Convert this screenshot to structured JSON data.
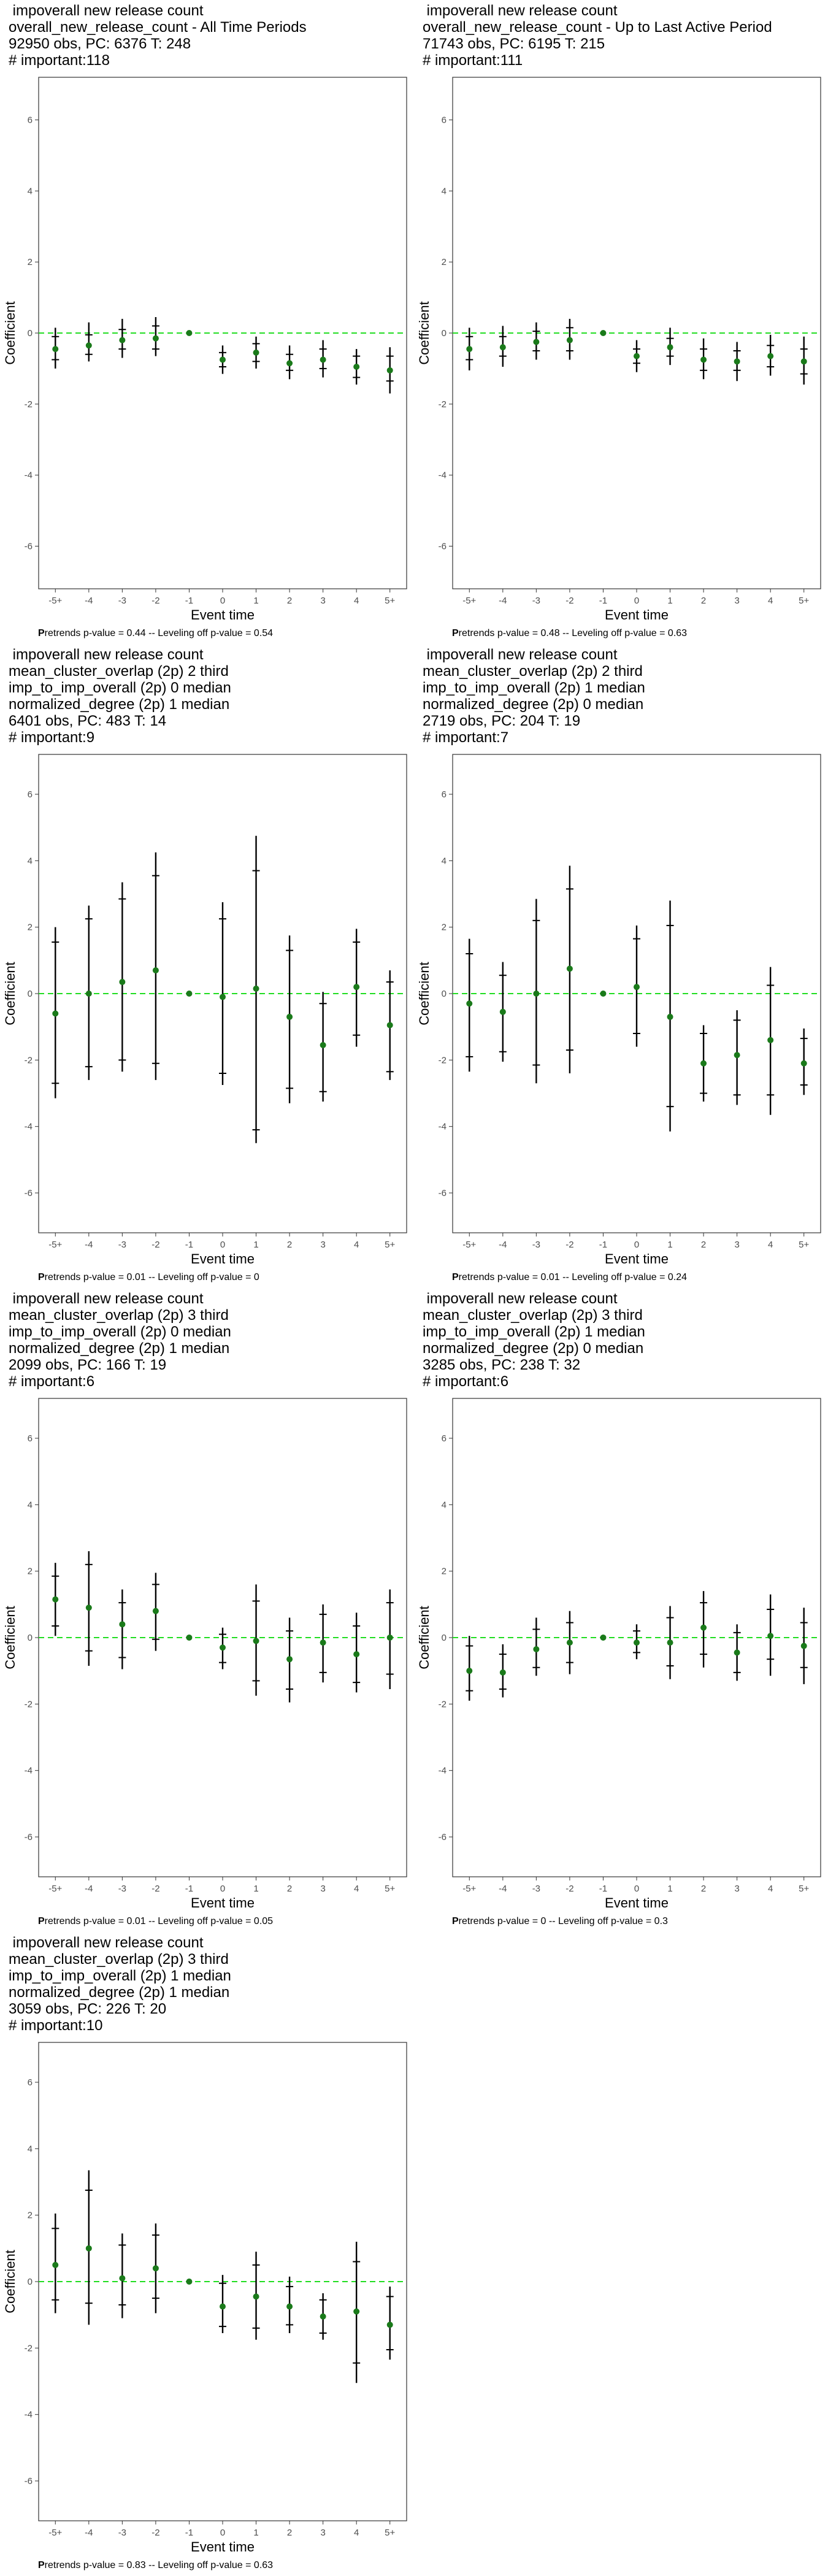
{
  "ui": {
    "y_axis_label": "Coefficient",
    "x_axis_label": "Event time",
    "caption_lead": "P",
    "caption_tail_template": "retrends p-value = {pre} -- Leveling off p-value = {lev}"
  },
  "colors": {
    "point": "#1a7a1a",
    "zero_line": "#22dd22",
    "error_bar": "#000000",
    "frame": "#333333",
    "tick_text": "#4d4d4d"
  },
  "chart_data": [
    {
      "type": "scatter",
      "title_lines": [
        " impoverall new release count",
        "overall_new_release_count - All Time Periods",
        "92950 obs, PC: 6376 T: 248",
        "# important:118"
      ],
      "x_categories": [
        "-5+",
        "-4",
        "-3",
        "-2",
        "-1",
        "0",
        "1",
        "2",
        "3",
        "4",
        "5+"
      ],
      "ylim": [
        -7.2,
        7.2
      ],
      "yticks": [
        -6,
        -4,
        -2,
        0,
        2,
        4,
        6
      ],
      "grid": false,
      "coef": [
        -0.45,
        -0.35,
        -0.2,
        -0.15,
        0.0,
        -0.75,
        -0.55,
        -0.85,
        -0.75,
        -0.95,
        -1.05
      ],
      "ci_inner": [
        [
          -0.75,
          -0.1
        ],
        [
          -0.6,
          -0.05
        ],
        [
          -0.45,
          0.1
        ],
        [
          -0.45,
          0.2
        ],
        [
          0,
          0
        ],
        [
          -0.95,
          -0.55
        ],
        [
          -0.8,
          -0.3
        ],
        [
          -1.05,
          -0.6
        ],
        [
          -1.0,
          -0.45
        ],
        [
          -1.25,
          -0.65
        ],
        [
          -1.35,
          -0.65
        ]
      ],
      "ci_outer": [
        [
          -1.0,
          0.15
        ],
        [
          -0.8,
          0.3
        ],
        [
          -0.7,
          0.4
        ],
        [
          -0.65,
          0.45
        ],
        [
          0,
          0
        ],
        [
          -1.15,
          -0.35
        ],
        [
          -1.0,
          -0.1
        ],
        [
          -1.3,
          -0.35
        ],
        [
          -1.25,
          -0.2
        ],
        [
          -1.45,
          -0.45
        ],
        [
          -1.7,
          -0.4
        ]
      ],
      "pretrends_p": "0.44",
      "leveling_off_p": "0.54"
    },
    {
      "type": "scatter",
      "title_lines": [
        " impoverall new release count",
        "overall_new_release_count - Up to Last Active Period",
        "71743 obs, PC: 6195 T: 215",
        "# important:111"
      ],
      "x_categories": [
        "-5+",
        "-4",
        "-3",
        "-2",
        "-1",
        "0",
        "1",
        "2",
        "3",
        "4",
        "5+"
      ],
      "ylim": [
        -7.2,
        7.2
      ],
      "yticks": [
        -6,
        -4,
        -2,
        0,
        2,
        4,
        6
      ],
      "grid": false,
      "coef": [
        -0.45,
        -0.4,
        -0.25,
        -0.2,
        0.0,
        -0.65,
        -0.4,
        -0.75,
        -0.8,
        -0.65,
        -0.8
      ],
      "ci_inner": [
        [
          -0.75,
          -0.1
        ],
        [
          -0.65,
          -0.1
        ],
        [
          -0.5,
          0.05
        ],
        [
          -0.5,
          0.15
        ],
        [
          0,
          0
        ],
        [
          -0.85,
          -0.45
        ],
        [
          -0.65,
          -0.15
        ],
        [
          -1.05,
          -0.45
        ],
        [
          -1.05,
          -0.5
        ],
        [
          -0.95,
          -0.35
        ],
        [
          -1.15,
          -0.45
        ]
      ],
      "ci_outer": [
        [
          -1.05,
          0.15
        ],
        [
          -0.95,
          0.2
        ],
        [
          -0.75,
          0.3
        ],
        [
          -0.75,
          0.4
        ],
        [
          0,
          0
        ],
        [
          -1.1,
          -0.2
        ],
        [
          -0.9,
          0.15
        ],
        [
          -1.3,
          -0.15
        ],
        [
          -1.35,
          -0.25
        ],
        [
          -1.2,
          -0.05
        ],
        [
          -1.45,
          -0.1
        ]
      ],
      "pretrends_p": "0.48",
      "leveling_off_p": "0.63"
    },
    {
      "type": "scatter",
      "title_lines": [
        " impoverall new release count",
        "mean_cluster_overlap (2p) 2 third",
        "imp_to_imp_overall (2p) 0 median",
        "normalized_degree (2p) 1 median",
        "6401 obs, PC: 483 T: 14",
        "# important:9"
      ],
      "x_categories": [
        "-5+",
        "-4",
        "-3",
        "-2",
        "-1",
        "0",
        "1",
        "2",
        "3",
        "4",
        "5+"
      ],
      "ylim": [
        -7.2,
        7.2
      ],
      "yticks": [
        -6,
        -4,
        -2,
        0,
        2,
        4,
        6
      ],
      "grid": false,
      "coef": [
        -0.6,
        0.0,
        0.35,
        0.7,
        0.0,
        -0.1,
        0.15,
        -0.7,
        -1.55,
        0.2,
        -0.95
      ],
      "ci_inner": [
        [
          -2.7,
          1.55
        ],
        [
          -2.2,
          2.25
        ],
        [
          -2.0,
          2.85
        ],
        [
          -2.1,
          3.55
        ],
        [
          0,
          0
        ],
        [
          -2.4,
          2.25
        ],
        [
          -4.1,
          3.7
        ],
        [
          -2.85,
          1.3
        ],
        [
          -2.95,
          -0.3
        ],
        [
          -1.25,
          1.55
        ],
        [
          -2.35,
          0.35
        ]
      ],
      "ci_outer": [
        [
          -3.15,
          2.0
        ],
        [
          -2.6,
          2.65
        ],
        [
          -2.35,
          3.35
        ],
        [
          -2.6,
          4.25
        ],
        [
          0,
          0
        ],
        [
          -2.75,
          2.75
        ],
        [
          -4.5,
          4.75
        ],
        [
          -3.3,
          1.75
        ],
        [
          -3.25,
          0.05
        ],
        [
          -1.6,
          1.95
        ],
        [
          -2.6,
          0.7
        ]
      ],
      "pretrends_p": "0.01",
      "leveling_off_p": "0"
    },
    {
      "type": "scatter",
      "title_lines": [
        " impoverall new release count",
        "mean_cluster_overlap (2p) 2 third",
        "imp_to_imp_overall (2p) 1 median",
        "normalized_degree (2p) 0 median",
        "2719 obs, PC: 204 T: 19",
        "# important:7"
      ],
      "x_categories": [
        "-5+",
        "-4",
        "-3",
        "-2",
        "-1",
        "0",
        "1",
        "2",
        "3",
        "4",
        "5+"
      ],
      "ylim": [
        -7.2,
        7.2
      ],
      "yticks": [
        -6,
        -4,
        -2,
        0,
        2,
        4,
        6
      ],
      "grid": false,
      "coef": [
        -0.3,
        -0.55,
        0.0,
        0.75,
        0.0,
        0.2,
        -0.7,
        -2.1,
        -1.85,
        -1.4,
        -2.1
      ],
      "ci_inner": [
        [
          -1.9,
          1.2
        ],
        [
          -1.75,
          0.55
        ],
        [
          -2.15,
          2.2
        ],
        [
          -1.7,
          3.15
        ],
        [
          0,
          0
        ],
        [
          -1.2,
          1.65
        ],
        [
          -3.4,
          2.05
        ],
        [
          -3.0,
          -1.2
        ],
        [
          -3.05,
          -0.8
        ],
        [
          -3.05,
          0.25
        ],
        [
          -2.75,
          -1.35
        ]
      ],
      "ci_outer": [
        [
          -2.35,
          1.65
        ],
        [
          -2.05,
          0.95
        ],
        [
          -2.7,
          2.85
        ],
        [
          -2.4,
          3.85
        ],
        [
          0,
          0
        ],
        [
          -1.6,
          2.05
        ],
        [
          -4.15,
          2.8
        ],
        [
          -3.25,
          -0.95
        ],
        [
          -3.35,
          -0.5
        ],
        [
          -3.65,
          0.8
        ],
        [
          -3.05,
          -1.05
        ]
      ],
      "pretrends_p": "0.01",
      "leveling_off_p": "0.24"
    },
    {
      "type": "scatter",
      "title_lines": [
        " impoverall new release count",
        "mean_cluster_overlap (2p) 3 third",
        "imp_to_imp_overall (2p) 0 median",
        "normalized_degree (2p) 1 median",
        "2099 obs, PC: 166 T: 19",
        "# important:6"
      ],
      "x_categories": [
        "-5+",
        "-4",
        "-3",
        "-2",
        "-1",
        "0",
        "1",
        "2",
        "3",
        "4",
        "5+"
      ],
      "ylim": [
        -7.2,
        7.2
      ],
      "yticks": [
        -6,
        -4,
        -2,
        0,
        2,
        4,
        6
      ],
      "grid": false,
      "coef": [
        1.15,
        0.9,
        0.4,
        0.8,
        0.0,
        -0.3,
        -0.1,
        -0.65,
        -0.15,
        -0.5,
        0.0
      ],
      "ci_inner": [
        [
          0.35,
          1.85
        ],
        [
          -0.4,
          2.2
        ],
        [
          -0.6,
          1.05
        ],
        [
          -0.05,
          1.6
        ],
        [
          0,
          0
        ],
        [
          -0.75,
          0.1
        ],
        [
          -1.3,
          1.1
        ],
        [
          -1.55,
          0.2
        ],
        [
          -1.05,
          0.7
        ],
        [
          -1.35,
          0.35
        ],
        [
          -1.1,
          1.05
        ]
      ],
      "ci_outer": [
        [
          0.05,
          2.25
        ],
        [
          -0.85,
          2.6
        ],
        [
          -0.95,
          1.45
        ],
        [
          -0.4,
          1.95
        ],
        [
          0,
          0
        ],
        [
          -0.95,
          0.3
        ],
        [
          -1.75,
          1.6
        ],
        [
          -1.95,
          0.6
        ],
        [
          -1.35,
          1.0
        ],
        [
          -1.65,
          0.75
        ],
        [
          -1.55,
          1.45
        ]
      ],
      "pretrends_p": "0.01",
      "leveling_off_p": "0.05"
    },
    {
      "type": "scatter",
      "title_lines": [
        " impoverall new release count",
        "mean_cluster_overlap (2p) 3 third",
        "imp_to_imp_overall (2p) 1 median",
        "normalized_degree (2p) 0 median",
        "3285 obs, PC: 238 T: 32",
        "# important:6"
      ],
      "x_categories": [
        "-5+",
        "-4",
        "-3",
        "-2",
        "-1",
        "0",
        "1",
        "2",
        "3",
        "4",
        "5+"
      ],
      "ylim": [
        -7.2,
        7.2
      ],
      "yticks": [
        -6,
        -4,
        -2,
        0,
        2,
        4,
        6
      ],
      "grid": false,
      "coef": [
        -1.0,
        -1.05,
        -0.35,
        -0.15,
        0.0,
        -0.15,
        -0.15,
        0.3,
        -0.45,
        0.05,
        -0.25
      ],
      "ci_inner": [
        [
          -1.6,
          -0.25
        ],
        [
          -1.55,
          -0.5
        ],
        [
          -0.9,
          0.25
        ],
        [
          -0.75,
          0.45
        ],
        [
          0,
          0
        ],
        [
          -0.45,
          0.2
        ],
        [
          -0.85,
          0.6
        ],
        [
          -0.5,
          1.05
        ],
        [
          -1.05,
          0.15
        ],
        [
          -0.65,
          0.85
        ],
        [
          -0.9,
          0.45
        ]
      ],
      "ci_outer": [
        [
          -1.9,
          0.05
        ],
        [
          -1.8,
          -0.2
        ],
        [
          -1.15,
          0.6
        ],
        [
          -1.1,
          0.8
        ],
        [
          0,
          0
        ],
        [
          -0.65,
          0.4
        ],
        [
          -1.25,
          0.95
        ],
        [
          -0.9,
          1.4
        ],
        [
          -1.3,
          0.4
        ],
        [
          -1.15,
          1.3
        ],
        [
          -1.4,
          0.9
        ]
      ],
      "pretrends_p": "0",
      "leveling_off_p": "0.3"
    },
    {
      "type": "scatter",
      "title_lines": [
        " impoverall new release count",
        "mean_cluster_overlap (2p) 3 third",
        "imp_to_imp_overall (2p) 1 median",
        "normalized_degree (2p) 1 median",
        "3059 obs, PC: 226 T: 20",
        "# important:10"
      ],
      "x_categories": [
        "-5+",
        "-4",
        "-3",
        "-2",
        "-1",
        "0",
        "1",
        "2",
        "3",
        "4",
        "5+"
      ],
      "ylim": [
        -7.2,
        7.2
      ],
      "yticks": [
        -6,
        -4,
        -2,
        0,
        2,
        4,
        6
      ],
      "grid": false,
      "coef": [
        0.5,
        1.0,
        0.1,
        0.4,
        0.0,
        -0.75,
        -0.45,
        -0.75,
        -1.05,
        -0.9,
        -1.3
      ],
      "ci_inner": [
        [
          -0.55,
          1.6
        ],
        [
          -0.65,
          2.75
        ],
        [
          -0.7,
          1.1
        ],
        [
          -0.5,
          1.4
        ],
        [
          0,
          0
        ],
        [
          -1.35,
          -0.05
        ],
        [
          -1.4,
          0.5
        ],
        [
          -1.3,
          -0.15
        ],
        [
          -1.55,
          -0.55
        ],
        [
          -2.45,
          0.6
        ],
        [
          -2.05,
          -0.45
        ]
      ],
      "ci_outer": [
        [
          -0.95,
          2.05
        ],
        [
          -1.3,
          3.35
        ],
        [
          -1.1,
          1.45
        ],
        [
          -0.95,
          1.75
        ],
        [
          0,
          0
        ],
        [
          -1.55,
          0.2
        ],
        [
          -1.75,
          0.9
        ],
        [
          -1.55,
          0.15
        ],
        [
          -1.75,
          -0.35
        ],
        [
          -3.05,
          1.2
        ],
        [
          -2.35,
          -0.15
        ]
      ],
      "pretrends_p": "0.83",
      "leveling_off_p": "0.63"
    }
  ]
}
